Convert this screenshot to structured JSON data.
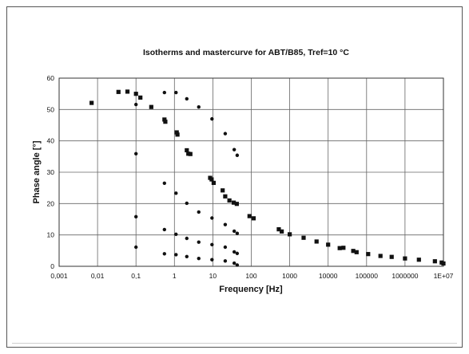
{
  "chart_data": {
    "type": "scatter",
    "title": "Isotherms and mastercurve for ABT/B85, Tref=10 °C",
    "xlabel": "Frequency [Hz]",
    "ylabel": "Phase angle [°]",
    "x_scale": "log",
    "xlim": [
      0.001,
      10000000
    ],
    "ylim": [
      0,
      60
    ],
    "x_tick_labels": [
      "0,001",
      "0,01",
      "0,1",
      "1",
      "10",
      "100",
      "1000",
      "10000",
      "100000",
      "1000000",
      "1E+07"
    ],
    "y_tick_labels": [
      "0",
      "10",
      "20",
      "30",
      "40",
      "50",
      "60"
    ],
    "grid": true,
    "marker_color": "#111111",
    "series": [
      {
        "marker": "square",
        "points": [
          [
            0.007,
            52.1
          ],
          [
            0.035,
            55.6
          ],
          [
            0.06,
            55.7
          ],
          [
            0.1,
            55.0
          ],
          [
            0.13,
            53.8
          ],
          [
            0.25,
            50.8
          ],
          [
            0.55,
            46.8
          ],
          [
            0.58,
            46.1
          ],
          [
            1.15,
            42.7
          ],
          [
            1.2,
            42.0
          ],
          [
            2.1,
            37.0
          ],
          [
            2.3,
            35.9
          ],
          [
            2.6,
            35.8
          ],
          [
            8.5,
            28.2
          ],
          [
            9.3,
            27.7
          ],
          [
            10.5,
            26.6
          ],
          [
            18,
            24.2
          ],
          [
            21,
            22.3
          ],
          [
            27,
            21.0
          ],
          [
            35,
            20.3
          ],
          [
            42,
            19.9
          ],
          [
            90,
            16.0
          ],
          [
            115,
            15.3
          ],
          [
            520,
            11.8
          ],
          [
            620,
            11.1
          ],
          [
            1000,
            10.2
          ],
          [
            2300,
            9.1
          ],
          [
            5000,
            7.9
          ],
          [
            10000,
            6.9
          ],
          [
            20000,
            5.8
          ],
          [
            25000,
            5.9
          ],
          [
            45000,
            4.9
          ],
          [
            55000,
            4.5
          ],
          [
            110000,
            3.9
          ],
          [
            230000,
            3.3
          ],
          [
            450000,
            3.0
          ],
          [
            1000000,
            2.5
          ],
          [
            2300000,
            2.1
          ],
          [
            6000000,
            1.6
          ],
          [
            9000000,
            1.2
          ],
          [
            10000000,
            0.9
          ]
        ]
      },
      {
        "marker": "circle",
        "points": [
          [
            0.1,
            51.6
          ],
          [
            0.1,
            35.9
          ],
          [
            0.1,
            15.8
          ],
          [
            0.1,
            6.1
          ],
          [
            0.55,
            55.4
          ],
          [
            0.55,
            26.5
          ],
          [
            0.55,
            11.7
          ],
          [
            0.55,
            4.0
          ],
          [
            1.1,
            55.4
          ],
          [
            1.1,
            23.3
          ],
          [
            1.1,
            10.2
          ],
          [
            1.1,
            3.7
          ],
          [
            2.1,
            53.4
          ],
          [
            2.1,
            20.1
          ],
          [
            2.1,
            8.9
          ],
          [
            2.1,
            3.1
          ],
          [
            4.3,
            50.8
          ],
          [
            4.3,
            17.3
          ],
          [
            4.3,
            7.7
          ],
          [
            4.3,
            2.5
          ],
          [
            9.5,
            47.0
          ],
          [
            9.5,
            15.4
          ],
          [
            9.5,
            6.9
          ],
          [
            9.5,
            2.1
          ],
          [
            21,
            42.3
          ],
          [
            21,
            13.3
          ],
          [
            21,
            6.1
          ],
          [
            21,
            1.7
          ],
          [
            36,
            37.2
          ],
          [
            36,
            11.2
          ],
          [
            36,
            4.6
          ],
          [
            36,
            1.0
          ],
          [
            43,
            35.4
          ],
          [
            43,
            10.5
          ],
          [
            43,
            4.1
          ],
          [
            43,
            0.4
          ]
        ]
      }
    ]
  }
}
